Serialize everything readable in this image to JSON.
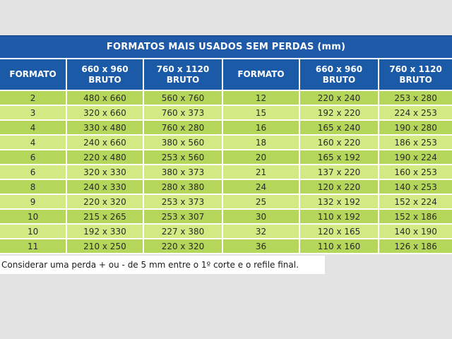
{
  "title": "FORMATOS MAIS USADOS SEM PERDAS (mm)",
  "headers": [
    {
      "line1": "FORMATO",
      "line2": ""
    },
    {
      "line1": "660 x 960",
      "line2": "BRUTO"
    },
    {
      "line1": "760 x 1120",
      "line2": "BRUTO"
    },
    {
      "line1": "FORMATO",
      "line2": ""
    },
    {
      "line1": "660 x 960",
      "line2": "BRUTO"
    },
    {
      "line1": "760 x 1120",
      "line2": "BRUTO"
    }
  ],
  "rows": [
    [
      "2",
      "480 x 660",
      "560 x 760",
      "12",
      "220 x 240",
      "253 x 280"
    ],
    [
      "3",
      "320 x 660",
      "760 x 373",
      "15",
      "192 x 220",
      "224 x 253"
    ],
    [
      "4",
      "330 x 480",
      "760 x 280",
      "16",
      "165 x 240",
      "190 x 280"
    ],
    [
      "4",
      "240 x 660",
      "380 x 560",
      "18",
      "160 x 220",
      "186 x 253"
    ],
    [
      "6",
      "220 x 480",
      "253 x 560",
      "20",
      "165 x 192",
      "190 x 224"
    ],
    [
      "6",
      "320 x 330",
      "380 x 373",
      "21",
      "137 x 220",
      "160 x 253"
    ],
    [
      "8",
      "240 x 330",
      "280 x 380",
      "24",
      "120 x 220",
      "140 x 253"
    ],
    [
      "9",
      "220 x 320",
      "253 x 373",
      "25",
      "132 x 192",
      "152 x 224"
    ],
    [
      "10",
      "215 x 265",
      "253 x 307",
      "30",
      "110 x 192",
      "152 x 186"
    ],
    [
      "10",
      "192 x 330",
      "227 x 380",
      "32",
      "120 x 165",
      "140 x 190"
    ],
    [
      "11",
      "210 x 250",
      "220 x 320",
      "36",
      "110 x 160",
      "126 x 186"
    ]
  ],
  "footnote": "Considerar uma perda + ou - de 5 mm entre o 1º corte e o refile final.",
  "colors": {
    "header_blue": "#1b5aa6",
    "row_dark_green": "#b4d65a",
    "row_light_green": "#d3ea84"
  }
}
